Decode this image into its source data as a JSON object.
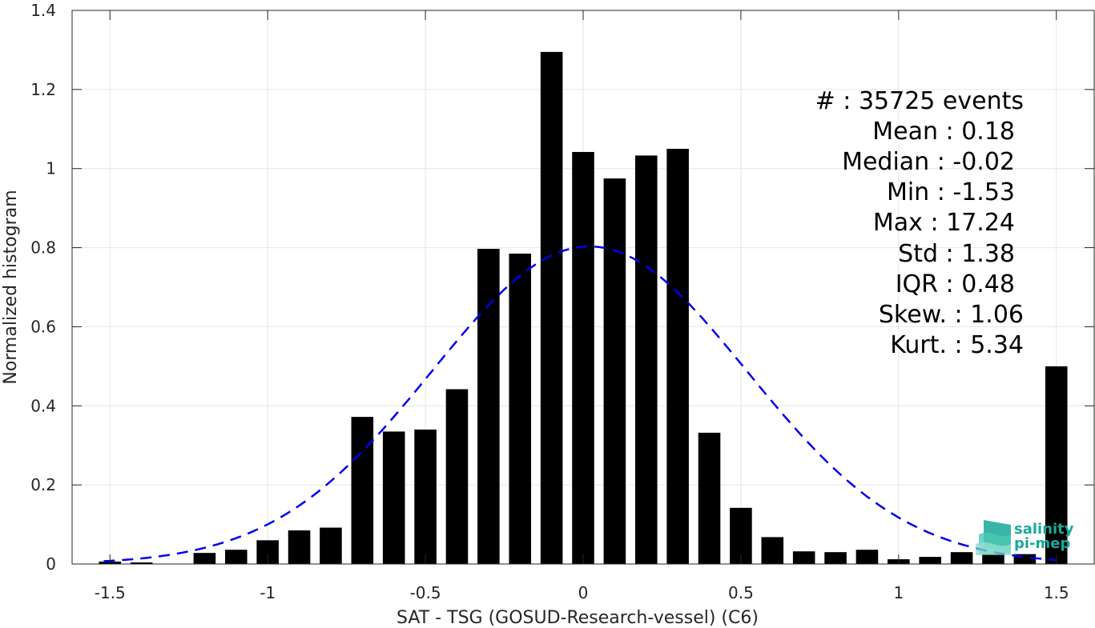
{
  "chart_data": {
    "type": "bar",
    "xlabel": "SAT - TSG (GOSUD-Research-vessel) (C6)",
    "ylabel": "Normalized histogram",
    "xlim": [
      -1.62,
      1.62
    ],
    "ylim": [
      0,
      1.4
    ],
    "xticks": [
      -1.5,
      -1,
      -0.5,
      0,
      0.5,
      1,
      1.5
    ],
    "xtick_labels": [
      "-1.5",
      "-1",
      "-0.5",
      "0",
      "0.5",
      "1",
      "1.5"
    ],
    "yticks": [
      0,
      0.2,
      0.4,
      0.6,
      0.8,
      1,
      1.2,
      1.4
    ],
    "ytick_labels": [
      "0",
      "0.2",
      "0.4",
      "0.6",
      "0.8",
      "1",
      "1.2",
      "1.4"
    ],
    "grid": true,
    "bin_centers": [
      -1.5,
      -1.4,
      -1.3,
      -1.2,
      -1.1,
      -1.0,
      -0.9,
      -0.8,
      -0.7,
      -0.6,
      -0.5,
      -0.4,
      -0.3,
      -0.2,
      -0.1,
      0.0,
      0.1,
      0.2,
      0.3,
      0.4,
      0.5,
      0.6,
      0.7,
      0.8,
      0.9,
      1.0,
      1.1,
      1.2,
      1.3,
      1.4,
      1.5
    ],
    "values": [
      0.006,
      0.004,
      0.0,
      0.028,
      0.036,
      0.06,
      0.085,
      0.092,
      0.372,
      0.335,
      0.34,
      0.442,
      0.797,
      0.785,
      1.295,
      1.042,
      0.975,
      1.033,
      1.05,
      0.332,
      0.142,
      0.068,
      0.032,
      0.03,
      0.036,
      0.012,
      0.018,
      0.03,
      0.025,
      0.025,
      0.5
    ],
    "bar_color": "#000000",
    "fit_curve": {
      "style": "dashed",
      "color": "#0000ee",
      "mean": 0.02,
      "sigma": 0.5,
      "peak": 0.803
    },
    "stats": [
      "#  : 35725 events",
      "Mean : 0.18",
      "Median : -0.02",
      "Min : -1.53",
      "Max : 17.24",
      "Std : 1.38",
      "IQR : 0.48",
      "Skew. : 1.06",
      "Kurt. : 5.34"
    ]
  },
  "logo": {
    "line1": "salinity",
    "line2": "pi-mep",
    "color": "#1aa89a"
  }
}
